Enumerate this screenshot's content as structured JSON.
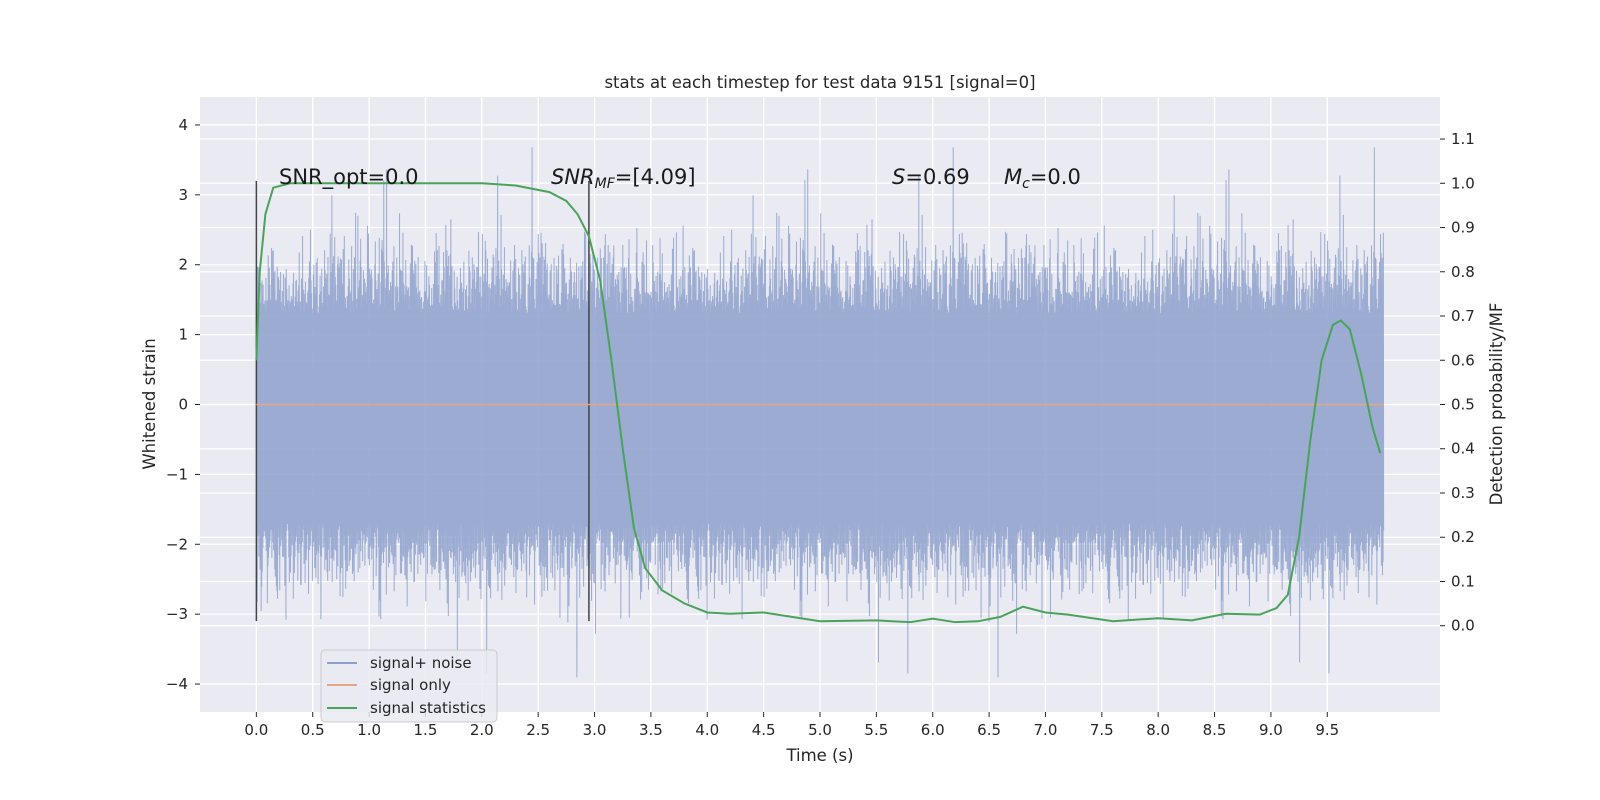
{
  "chart_data": {
    "type": "line",
    "title": "stats at each timestep for test data 9151 [signal=0]",
    "xlabel": "Time (s)",
    "ylabel": "Whitened strain",
    "ylabel_right": "Detection probability/MF",
    "xlim": [
      -0.5,
      10.5
    ],
    "ylim": [
      -4.4,
      4.4
    ],
    "ylim_right": [
      -0.195,
      1.195
    ],
    "x_ticks": [
      0.0,
      0.5,
      1.0,
      1.5,
      2.0,
      2.5,
      3.0,
      3.5,
      4.0,
      4.5,
      5.0,
      5.5,
      6.0,
      6.5,
      7.0,
      7.5,
      8.0,
      8.5,
      9.0,
      9.5
    ],
    "x_tick_labels": [
      "0.0",
      "0.5",
      "1.0",
      "1.5",
      "2.0",
      "2.5",
      "3.0",
      "3.5",
      "4.0",
      "4.5",
      "5.0",
      "5.5",
      "6.0",
      "6.5",
      "7.0",
      "7.5",
      "8.0",
      "8.5",
      "9.0",
      "9.5"
    ],
    "y_ticks": [
      -4,
      -3,
      -2,
      -1,
      0,
      1,
      2,
      3,
      4
    ],
    "y_tick_labels": [
      "−4",
      "−3",
      "−2",
      "−1",
      "0",
      "1",
      "2",
      "3",
      "4"
    ],
    "y_ticks_right": [
      0.0,
      0.1,
      0.2,
      0.3,
      0.4,
      0.5,
      0.6,
      0.7,
      0.8,
      0.9,
      1.0,
      1.1
    ],
    "y_tick_labels_right": [
      "0.0",
      "0.1",
      "0.2",
      "0.3",
      "0.4",
      "0.5",
      "0.6",
      "0.7",
      "0.8",
      "0.9",
      "1.0",
      "1.1"
    ],
    "grid": true,
    "legend_position": "lower-left",
    "annotations": {
      "snr_opt": "SNR_opt=0.0",
      "snr_mf_main": "SNR",
      "snr_mf_sub": "MF",
      "snr_mf_value": "=[4.09]",
      "s_symbol": "S",
      "s_value": "=0.69",
      "mc_main": "M",
      "mc_sub": "c",
      "mc_value": "=0.0"
    },
    "vertical_markers": [
      {
        "x": 0.0,
        "y_range": [
          -3.1,
          3.2
        ]
      },
      {
        "x": 2.95,
        "y_range": [
          -3.1,
          3.2
        ]
      }
    ],
    "series": [
      {
        "name": "signal+ noise",
        "color": "#8da0cb",
        "axis": "left",
        "x_range": [
          0.0,
          10.0
        ],
        "sample_count": 4000,
        "typical_band": [
          -1.7,
          1.3
        ],
        "peak_range": [
          -3.95,
          4.05
        ]
      },
      {
        "name": "signal only",
        "color": "#e5a587",
        "axis": "left",
        "x": [
          0.0,
          10.0
        ],
        "y": [
          0.0,
          0.0
        ]
      },
      {
        "name": "signal statistics",
        "color": "#4aa35a",
        "axis": "right",
        "x": [
          0.0,
          0.03,
          0.08,
          0.15,
          0.3,
          0.6,
          1.0,
          1.5,
          2.0,
          2.3,
          2.6,
          2.75,
          2.85,
          2.95,
          3.05,
          3.15,
          3.25,
          3.35,
          3.45,
          3.6,
          3.8,
          4.0,
          4.2,
          4.5,
          5.0,
          5.5,
          5.8,
          6.0,
          6.2,
          6.4,
          6.6,
          6.8,
          7.0,
          7.2,
          7.6,
          8.0,
          8.3,
          8.6,
          8.9,
          9.05,
          9.15,
          9.25,
          9.35,
          9.45,
          9.55,
          9.62,
          9.7,
          9.8,
          9.9,
          9.97
        ],
        "y": [
          0.6,
          0.8,
          0.93,
          0.99,
          1.0,
          1.0,
          1.0,
          1.0,
          1.0,
          0.995,
          0.98,
          0.96,
          0.93,
          0.88,
          0.78,
          0.6,
          0.4,
          0.22,
          0.13,
          0.08,
          0.05,
          0.03,
          0.027,
          0.03,
          0.01,
          0.012,
          0.008,
          0.016,
          0.008,
          0.01,
          0.02,
          0.043,
          0.03,
          0.025,
          0.01,
          0.017,
          0.012,
          0.027,
          0.025,
          0.04,
          0.07,
          0.2,
          0.42,
          0.6,
          0.68,
          0.69,
          0.67,
          0.57,
          0.45,
          0.39
        ]
      }
    ]
  }
}
